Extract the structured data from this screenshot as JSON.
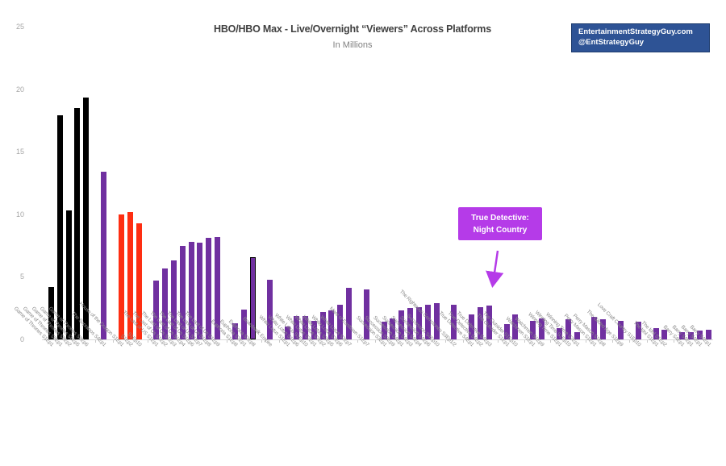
{
  "header": {
    "badge": {
      "line1": "EntertainmentStrategyGuy.com",
      "line2": "@EntStrategyGuy",
      "bg_color": "#2e5395"
    }
  },
  "chart_data": {
    "type": "bar",
    "title": "HBO/HBO Max - Live/Overnight “Viewers” Across Platforms",
    "subtitle": "In Millions",
    "xlabel": "",
    "ylabel": "",
    "ylim": [
      0,
      25
    ],
    "yticks": [
      0,
      5,
      10,
      15,
      20,
      25
    ],
    "grid": false,
    "legend": false,
    "colors": {
      "black": "#000000",
      "purple": "#7030a0",
      "red": "#fe2e12",
      "annotation": "#b53be8"
    },
    "annotation": {
      "line1": "True Detective:",
      "line2": "Night Country"
    },
    "bars": [
      {
        "label": "Game of Thrones S1Ep1",
        "value": 4.2,
        "color": "black",
        "group": 0
      },
      {
        "label": "Game of Thrones S8Ep1",
        "value": 17.9,
        "color": "black",
        "group": 0
      },
      {
        "label": "Game of Thrones S8Ep2",
        "value": 10.3,
        "color": "black",
        "group": 0
      },
      {
        "label": "Game of Thrones S8Ep5",
        "value": 18.5,
        "color": "black",
        "group": 0
      },
      {
        "label": "Game of Thrones S8Ep6",
        "value": 19.3,
        "color": "black",
        "group": 0
      },
      {
        "label": "The Sopranos S4Ep1",
        "value": 13.4,
        "color": "purple",
        "group": 1
      },
      {
        "label": "House of the Dragon S1Ep1",
        "value": 10.0,
        "color": "red",
        "group": 2
      },
      {
        "label": "S1Ep2",
        "value": 10.2,
        "color": "red",
        "group": 2
      },
      {
        "label": "S1Ep10",
        "value": 9.3,
        "color": "red",
        "group": 2
      },
      {
        "label": "The Last of US S1Ep1",
        "value": 4.7,
        "color": "purple",
        "group": 3
      },
      {
        "label": "The Last of Us S1Ep2",
        "value": 5.7,
        "color": "purple",
        "group": 3
      },
      {
        "label": "The Last of Us S1Ep3",
        "value": 6.3,
        "color": "purple",
        "group": 3
      },
      {
        "label": "The Last of Us S1Ep4",
        "value": 7.5,
        "color": "purple",
        "group": 3
      },
      {
        "label": "The Last of Us S1Ep6",
        "value": 7.8,
        "color": "purple",
        "group": 3
      },
      {
        "label": "The Last of Us S1Ep7",
        "value": 7.7,
        "color": "purple",
        "group": 3
      },
      {
        "label": "The Last of Us S1Ep8",
        "value": 8.1,
        "color": "purple",
        "group": 3
      },
      {
        "label": "The Last of Us S1Ep9",
        "value": 8.2,
        "color": "purple",
        "group": 3
      },
      {
        "label": "Euphoria S1Ep8",
        "value": 1.3,
        "color": "purple",
        "group": 4
      },
      {
        "label": "Euphoria S2Ep1",
        "value": 2.4,
        "color": "purple",
        "group": 4
      },
      {
        "label": "Euphoria S2Ep8",
        "value": 6.6,
        "color": "purple",
        "group": 4,
        "outlined": true
      },
      {
        "label": "Boardwalk Empire",
        "value": 4.8,
        "color": "purple",
        "group": 5
      },
      {
        "label": "White Lotus S1Ep1",
        "value": 1.0,
        "color": "purple",
        "group": 6
      },
      {
        "label": "White Lotus S1Ep6",
        "value": 1.9,
        "color": "purple",
        "group": 6
      },
      {
        "label": "White Lotus S1Ep10",
        "value": 1.9,
        "color": "purple",
        "group": 6
      },
      {
        "label": "White Lotus S2Ep1",
        "value": 1.5,
        "color": "purple",
        "group": 6
      },
      {
        "label": "White Lotus S2Ep2",
        "value": 2.2,
        "color": "purple",
        "group": 6
      },
      {
        "label": "White Lotus S2Ep5",
        "value": 2.3,
        "color": "purple",
        "group": 6
      },
      {
        "label": "White Lotus S2Ep6",
        "value": 2.8,
        "color": "purple",
        "group": 6
      },
      {
        "label": "White Lotus S2Ep7",
        "value": 4.1,
        "color": "purple",
        "group": 6
      },
      {
        "label": "Mare of Easttown S1Ep7",
        "value": 4.0,
        "color": "purple",
        "group": 7
      },
      {
        "label": "Succession S3Ep1",
        "value": 1.4,
        "color": "purple",
        "group": 8
      },
      {
        "label": "Succession S3Ep9",
        "value": 1.7,
        "color": "purple",
        "group": 8
      },
      {
        "label": "Succession S4Ep1",
        "value": 2.3,
        "color": "purple",
        "group": 8
      },
      {
        "label": "Succession S4Ep3",
        "value": 2.5,
        "color": "purple",
        "group": 8
      },
      {
        "label": "Succession S4Ep4",
        "value": 2.6,
        "color": "purple",
        "group": 8
      },
      {
        "label": "Succession S4Ep6",
        "value": 2.8,
        "color": "purple",
        "group": 8
      },
      {
        "label": "Succession S4Ep10",
        "value": 2.9,
        "color": "purple",
        "group": 8
      },
      {
        "label": "The Righteous Gemstones S3Ep1/2",
        "value": 2.8,
        "color": "purple",
        "group": 9
      },
      {
        "label": "True Detective S4Ep1",
        "value": 2.0,
        "color": "purple",
        "group": 10
      },
      {
        "label": "True Detective S4Ep2",
        "value": 2.6,
        "color": "purple",
        "group": 10
      },
      {
        "label": "True Detective S4Ep3",
        "value": 2.7,
        "color": "purple",
        "group": 10
      },
      {
        "label": "The Outsider S1Ep1",
        "value": 1.2,
        "color": "purple",
        "group": 11
      },
      {
        "label": "The Outsider S1Ep10",
        "value": 2.0,
        "color": "purple",
        "group": 11
      },
      {
        "label": "Watchmen S1Ep1",
        "value": 1.5,
        "color": "purple",
        "group": 12
      },
      {
        "label": "Watchmen S1Ep9",
        "value": 1.7,
        "color": "purple",
        "group": 12
      },
      {
        "label": "Winning Time S1Ep1",
        "value": 0.9,
        "color": "purple",
        "group": 13
      },
      {
        "label": "Winning Time S1Ep10",
        "value": 1.6,
        "color": "purple",
        "group": 13
      },
      {
        "label": "Winning Time S2Ep1",
        "value": 0.6,
        "color": "purple",
        "group": 13
      },
      {
        "label": "Perry Mason S1Ep1",
        "value": 1.8,
        "color": "purple",
        "group": 14
      },
      {
        "label": "Perry Mason S1Ep8",
        "value": 1.6,
        "color": "purple",
        "group": 14
      },
      {
        "label": "The Gilded Age S1Ep9",
        "value": 1.5,
        "color": "purple",
        "group": 15
      },
      {
        "label": "Love Craft Country S1Ep10",
        "value": 1.4,
        "color": "purple",
        "group": 16
      },
      {
        "label": "The Idol S1Ep1",
        "value": 0.9,
        "color": "purple",
        "group": 17
      },
      {
        "label": "The Idol S1Ep2",
        "value": 0.8,
        "color": "purple",
        "group": 17
      },
      {
        "label": "Barry S4Ep1",
        "value": 0.6,
        "color": "purple",
        "group": 18
      },
      {
        "label": "Barry S4Ep1",
        "value": 0.55,
        "color": "purple",
        "group": 18
      },
      {
        "label": "Barry S4Ep1",
        "value": 0.7,
        "color": "purple",
        "group": 18
      },
      {
        "label": "Barry S4Ep1",
        "value": 0.75,
        "color": "purple",
        "group": 18
      }
    ]
  }
}
